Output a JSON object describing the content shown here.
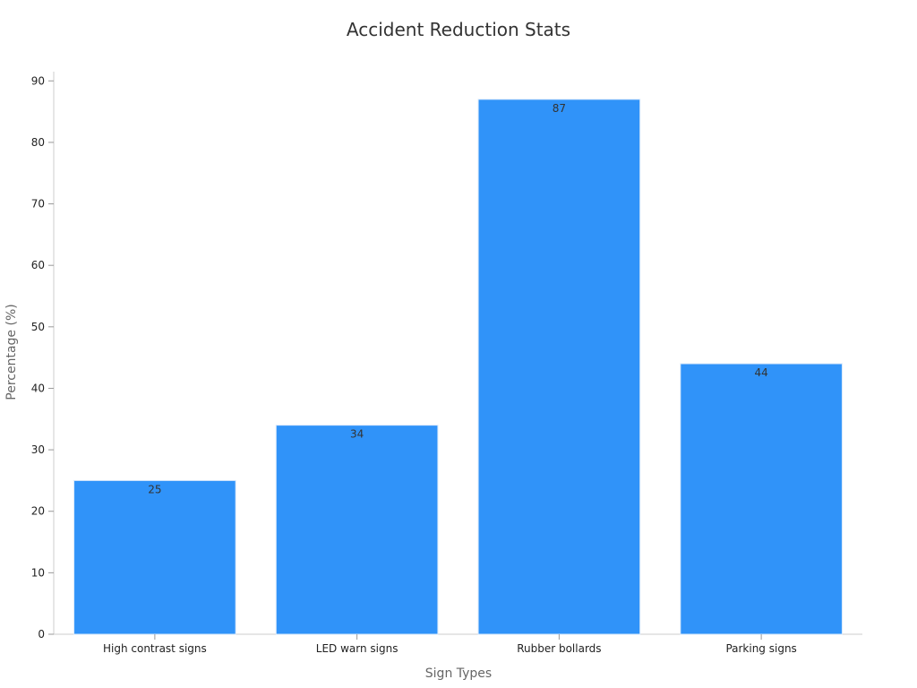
{
  "chart_data": {
    "type": "bar",
    "title": "Accident Reduction Stats",
    "xlabel": "Sign Types",
    "ylabel": "Percentage (%)",
    "categories": [
      "High contrast signs",
      "LED warn signs",
      "Rubber bollards",
      "Parking signs"
    ],
    "values": [
      25,
      34,
      87,
      44
    ],
    "data_labels": [
      "25",
      "34",
      "87",
      "44"
    ],
    "ylim": [
      0,
      91.5
    ],
    "yticks": [
      0,
      10,
      20,
      30,
      40,
      50,
      60,
      70,
      80,
      90
    ],
    "ytick_labels": [
      "0",
      "10",
      "20",
      "30",
      "40",
      "50",
      "60",
      "70",
      "80",
      "90"
    ],
    "grid": false,
    "legend": "none",
    "colors": {
      "bar": "#3093f9",
      "axis": "#cccccc",
      "tick": "#999999"
    }
  }
}
